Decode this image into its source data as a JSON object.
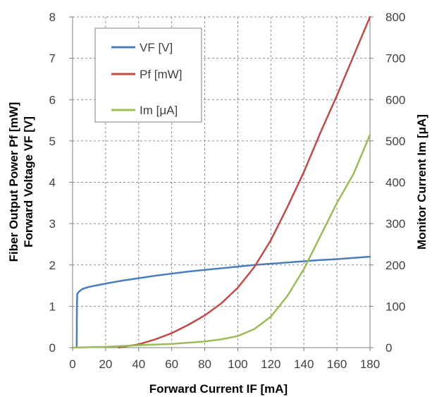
{
  "chart_data": {
    "type": "line",
    "xlabel": "Forward Current IF [mA]",
    "ylabel_left_line1": "Fiber Output Power Pf [mW]",
    "ylabel_left_line2": "Forward Voltage VF [V]",
    "ylabel_right": "Monitor Current Im [μA]",
    "xlim": [
      0,
      180
    ],
    "ylim_left": [
      0,
      8
    ],
    "ylim_right": [
      0,
      800
    ],
    "x_ticks": [
      "0",
      "20",
      "40",
      "60",
      "80",
      "100",
      "120",
      "140",
      "160",
      "180"
    ],
    "y_left_ticks": [
      "0",
      "1",
      "2",
      "3",
      "4",
      "5",
      "6",
      "7",
      "8"
    ],
    "y_right_ticks": [
      "0",
      "100",
      "200",
      "300",
      "400",
      "500",
      "600",
      "700",
      "800"
    ],
    "grid": true,
    "legend_position": "top-left",
    "series": [
      {
        "name": "VF [V]",
        "axis": "left",
        "color": "#4a7ebb",
        "points": [
          [
            2.5,
            0
          ],
          [
            2.6,
            1.0
          ],
          [
            2.8,
            1.3
          ],
          [
            4,
            1.36
          ],
          [
            6,
            1.42
          ],
          [
            10,
            1.47
          ],
          [
            15,
            1.51
          ],
          [
            20,
            1.55
          ],
          [
            30,
            1.62
          ],
          [
            40,
            1.68
          ],
          [
            50,
            1.74
          ],
          [
            60,
            1.79
          ],
          [
            70,
            1.84
          ],
          [
            80,
            1.88
          ],
          [
            90,
            1.92
          ],
          [
            100,
            1.96
          ],
          [
            110,
            2.0
          ],
          [
            120,
            2.03
          ],
          [
            130,
            2.06
          ],
          [
            140,
            2.09
          ],
          [
            150,
            2.12
          ],
          [
            160,
            2.14
          ],
          [
            170,
            2.17
          ],
          [
            180,
            2.2
          ]
        ]
      },
      {
        "name": "Pf [mW]",
        "axis": "left",
        "color": "#be4b48",
        "points": [
          [
            28,
            0
          ],
          [
            30,
            0.02
          ],
          [
            40,
            0.08
          ],
          [
            50,
            0.2
          ],
          [
            60,
            0.35
          ],
          [
            70,
            0.55
          ],
          [
            80,
            0.78
          ],
          [
            90,
            1.07
          ],
          [
            100,
            1.45
          ],
          [
            110,
            1.95
          ],
          [
            120,
            2.6
          ],
          [
            130,
            3.4
          ],
          [
            140,
            4.25
          ],
          [
            150,
            5.2
          ],
          [
            160,
            6.1
          ],
          [
            170,
            7.05
          ],
          [
            180,
            8.0
          ]
        ]
      },
      {
        "name": "Im [μA]",
        "axis": "right",
        "color": "#9bbb59",
        "points": [
          [
            0,
            0
          ],
          [
            20,
            2
          ],
          [
            40,
            6
          ],
          [
            60,
            9
          ],
          [
            80,
            15
          ],
          [
            90,
            20
          ],
          [
            100,
            28
          ],
          [
            110,
            45
          ],
          [
            120,
            75
          ],
          [
            130,
            125
          ],
          [
            140,
            190
          ],
          [
            150,
            270
          ],
          [
            160,
            350
          ],
          [
            170,
            420
          ],
          [
            180,
            515
          ]
        ]
      }
    ]
  }
}
